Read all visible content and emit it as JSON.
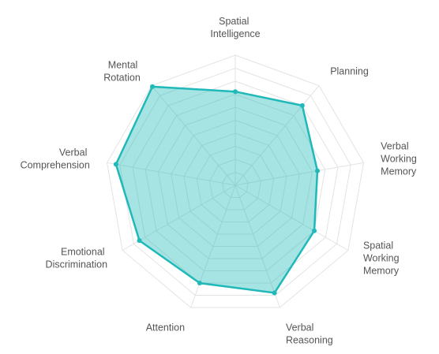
{
  "chart_data": {
    "type": "radar",
    "categories": [
      "Spatial Intelligence",
      "Planning",
      "Verbal Working Memory",
      "Spatial Working Memory",
      "Verbal Reasoning",
      "Attention",
      "Emotional Discrimination",
      "Verbal Comprehension",
      "Mental Rotation"
    ],
    "values": [
      72,
      80,
      64,
      70,
      88,
      80,
      85,
      93,
      99
    ],
    "color": "#20b8b8",
    "rlim": [
      0,
      100
    ],
    "rticks": [
      10,
      20,
      30,
      40,
      50,
      60,
      70,
      80,
      90,
      100
    ],
    "grid": true
  }
}
